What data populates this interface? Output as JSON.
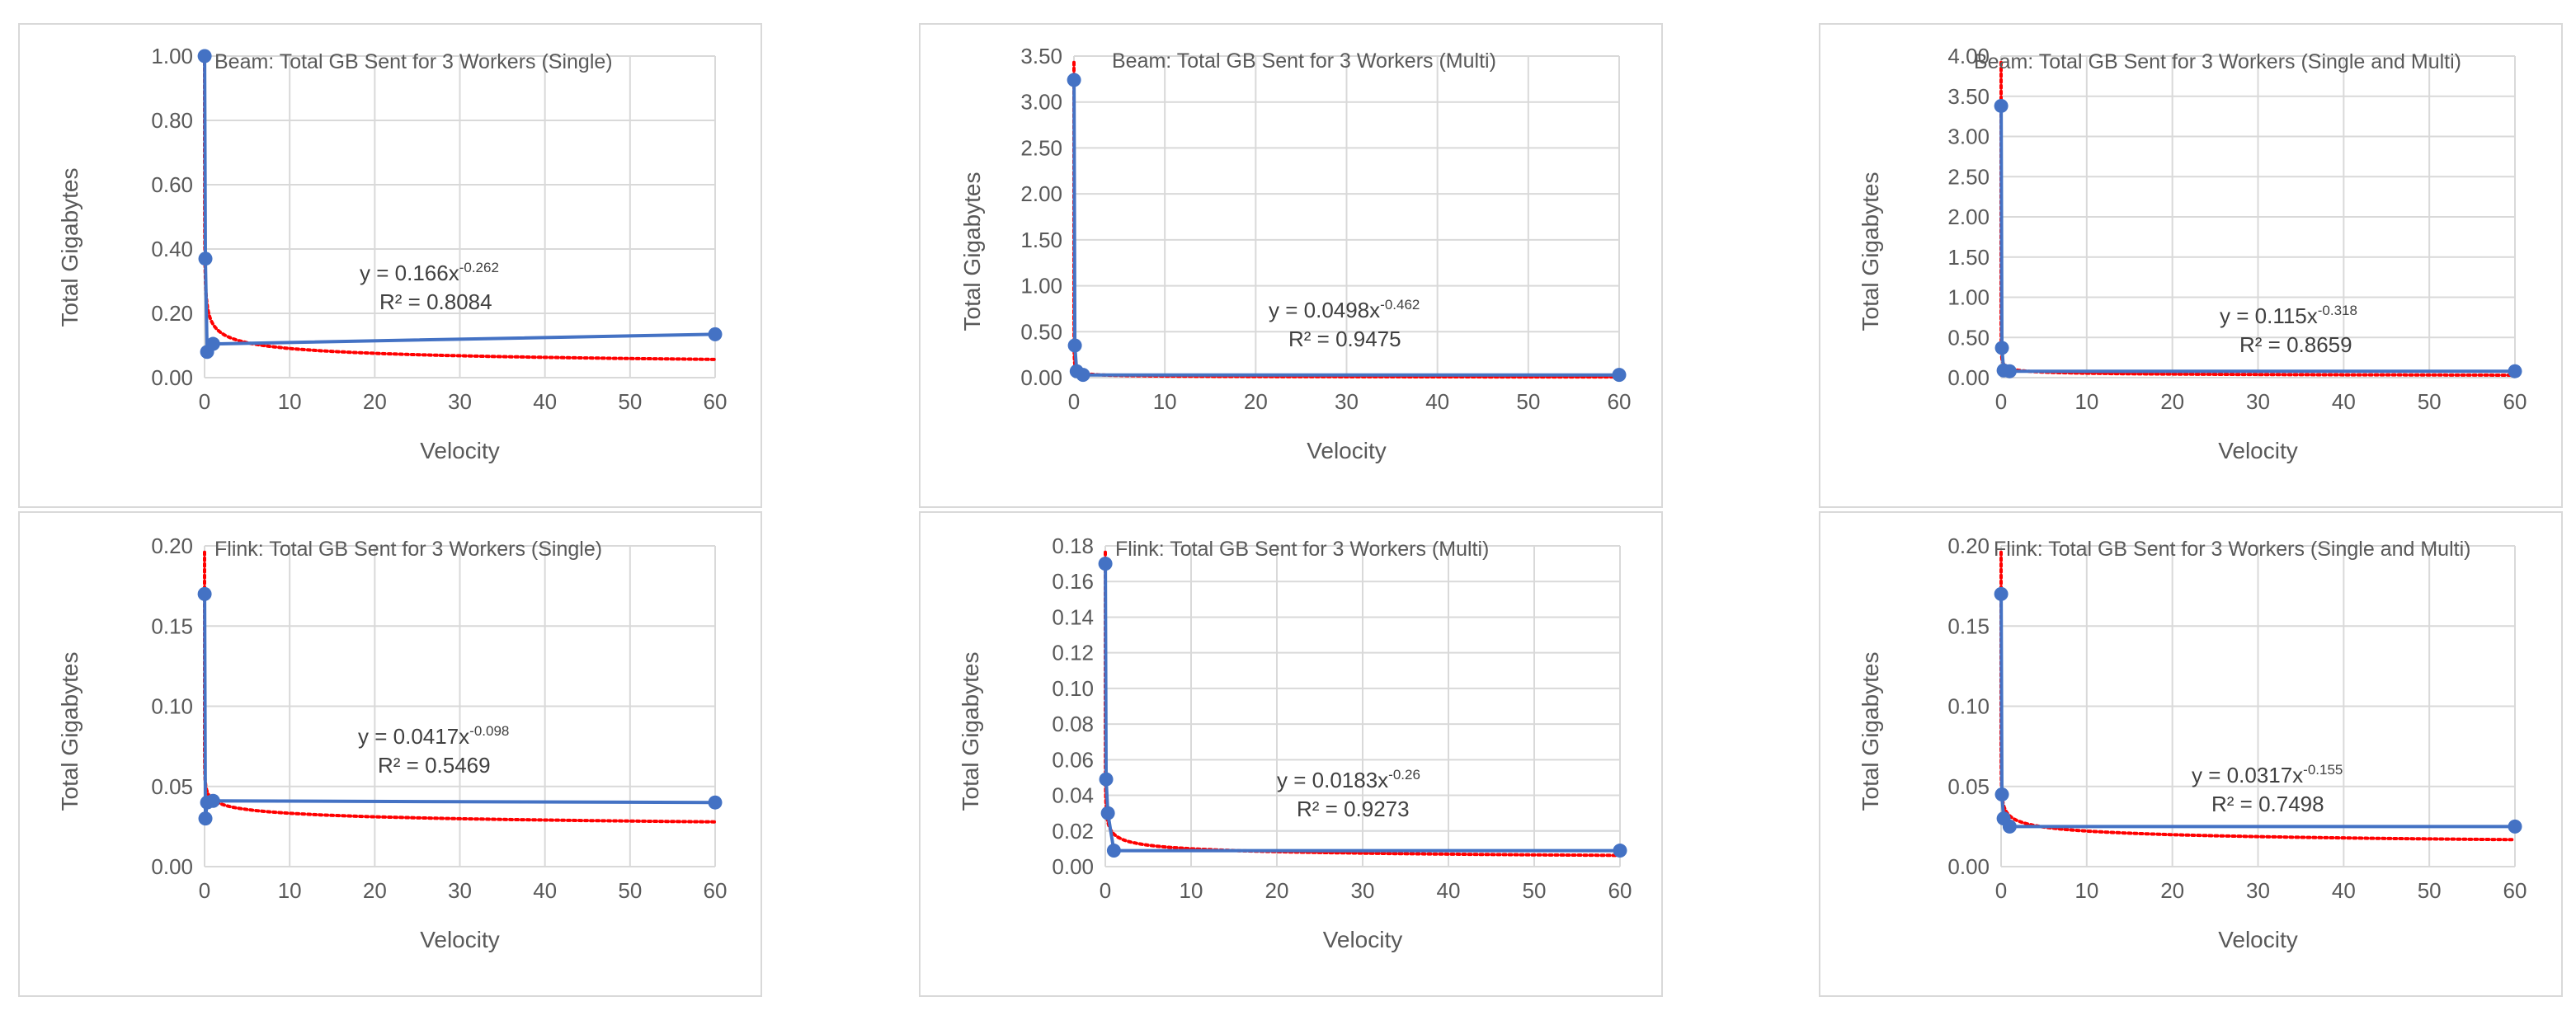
{
  "chart_data": [
    {
      "type": "scatter",
      "title": "Beam: Total GB Sent for 3 Workers (Single)",
      "xlabel": "Velocity",
      "ylabel": "Total Gigabytes",
      "xlim": [
        0,
        60
      ],
      "ylim": [
        0,
        1.0
      ],
      "x_ticks": [
        "0",
        "10",
        "20",
        "30",
        "40",
        "50",
        "60"
      ],
      "y_ticks": [
        "0.00",
        "0.20",
        "0.40",
        "0.60",
        "0.80",
        "1.00"
      ],
      "grid": true,
      "series": [
        {
          "x": [
            0.01,
            0.1,
            0.3,
            1,
            60
          ],
          "y": [
            1.0,
            0.37,
            0.08,
            0.105,
            0.135
          ],
          "color": "#4472c4"
        }
      ],
      "trendline": {
        "type": "power",
        "a": 0.166,
        "b": -0.262,
        "color": "#ff0000"
      },
      "equation": {
        "base": "y = 0.166x",
        "exponent": "-0.262",
        "r2": "R² = 0.8084"
      }
    },
    {
      "type": "scatter",
      "title": "Beam: Total GB Sent  for 3 Workers (Multi)",
      "xlabel": "Velocity",
      "ylabel": "Total Gigabytes",
      "xlim": [
        0,
        60
      ],
      "ylim": [
        0,
        3.5
      ],
      "x_ticks": [
        "0",
        "10",
        "20",
        "30",
        "40",
        "50",
        "60"
      ],
      "y_ticks": [
        "0.00",
        "0.50",
        "1.00",
        "1.50",
        "2.00",
        "2.50",
        "3.00",
        "3.50"
      ],
      "grid": true,
      "series": [
        {
          "x": [
            0.01,
            0.1,
            0.3,
            1,
            60
          ],
          "y": [
            3.24,
            0.35,
            0.07,
            0.03,
            0.03
          ],
          "color": "#4472c4"
        }
      ],
      "trendline": {
        "type": "power",
        "a": 0.0498,
        "b": -0.462,
        "color": "#ff0000"
      },
      "equation": {
        "base": "y = 0.0498x",
        "exponent": "-0.462",
        "r2": "R² = 0.9475"
      }
    },
    {
      "type": "scatter",
      "title": "Beam: Total GB Sent  for 3 Workers (Single and Multi)",
      "xlabel": "Velocity",
      "ylabel": "Total Gigabytes",
      "xlim": [
        0,
        60
      ],
      "ylim": [
        0,
        4.0
      ],
      "x_ticks": [
        "0",
        "10",
        "20",
        "30",
        "40",
        "50",
        "60"
      ],
      "y_ticks": [
        "0.00",
        "0.50",
        "1.00",
        "1.50",
        "2.00",
        "2.50",
        "3.00",
        "3.50",
        "4.00"
      ],
      "grid": true,
      "series": [
        {
          "x": [
            0.01,
            0.1,
            0.3,
            1,
            60
          ],
          "y": [
            3.38,
            0.37,
            0.09,
            0.08,
            0.08
          ],
          "color": "#4472c4"
        }
      ],
      "trendline": {
        "type": "power",
        "a": 0.115,
        "b": -0.318,
        "color": "#ff0000"
      },
      "equation": {
        "base": "y = 0.115x",
        "exponent": "-0.318",
        "r2": "R² = 0.8659"
      }
    },
    {
      "type": "scatter",
      "title": "Flink: Total GB Sent  for 3 Workers (Single)",
      "xlabel": "Velocity",
      "ylabel": "Total Gigabytes",
      "xlim": [
        0,
        60
      ],
      "ylim": [
        0,
        0.2
      ],
      "x_ticks": [
        "0",
        "10",
        "20",
        "30",
        "40",
        "50",
        "60"
      ],
      "y_ticks": [
        "0.00",
        "0.05",
        "0.10",
        "0.15",
        "0.20"
      ],
      "grid": true,
      "series": [
        {
          "x": [
            0.01,
            0.1,
            0.3,
            1,
            60
          ],
          "y": [
            0.17,
            0.03,
            0.04,
            0.041,
            0.04
          ],
          "color": "#4472c4"
        }
      ],
      "trendline": {
        "type": "power",
        "a": 0.0417,
        "b": -0.098,
        "color": "#ff0000"
      },
      "equation": {
        "base": "y = 0.0417x",
        "exponent": "-0.098",
        "r2": "R² = 0.5469"
      }
    },
    {
      "type": "scatter",
      "title": "Flink: Total GB Sent  for 3 Workers (Multi)",
      "xlabel": "Velocity",
      "ylabel": "Total Gigabytes",
      "xlim": [
        0,
        60
      ],
      "ylim": [
        0,
        0.18
      ],
      "x_ticks": [
        "0",
        "10",
        "20",
        "30",
        "40",
        "50",
        "60"
      ],
      "y_ticks": [
        "0.00",
        "0.02",
        "0.04",
        "0.06",
        "0.08",
        "0.10",
        "0.12",
        "0.14",
        "0.16",
        "0.18"
      ],
      "grid": true,
      "series": [
        {
          "x": [
            0.01,
            0.1,
            0.3,
            1,
            60
          ],
          "y": [
            0.17,
            0.049,
            0.03,
            0.009,
            0.009
          ],
          "color": "#4472c4"
        }
      ],
      "trendline": {
        "type": "power",
        "a": 0.0183,
        "b": -0.26,
        "color": "#ff0000"
      },
      "equation": {
        "base": "y = 0.0183x",
        "exponent": "-0.26",
        "r2": "R² = 0.9273"
      }
    },
    {
      "type": "scatter",
      "title": "Flink: Total GB Sent  for 3 Workers (Single and Multi)",
      "xlabel": "Velocity",
      "ylabel": "Total Gigabytes",
      "xlim": [
        0,
        60
      ],
      "ylim": [
        0,
        0.2
      ],
      "x_ticks": [
        "0",
        "10",
        "20",
        "30",
        "40",
        "50",
        "60"
      ],
      "y_ticks": [
        "0.00",
        "0.05",
        "0.10",
        "0.15",
        "0.20"
      ],
      "grid": true,
      "series": [
        {
          "x": [
            0.01,
            0.1,
            0.3,
            1,
            60
          ],
          "y": [
            0.17,
            0.045,
            0.03,
            0.025,
            0.025
          ],
          "color": "#4472c4"
        }
      ],
      "trendline": {
        "type": "power",
        "a": 0.0317,
        "b": -0.155,
        "color": "#ff0000"
      },
      "equation": {
        "base": "y = 0.0317x",
        "exponent": "-0.155",
        "r2": "R² = 0.7498"
      }
    }
  ]
}
